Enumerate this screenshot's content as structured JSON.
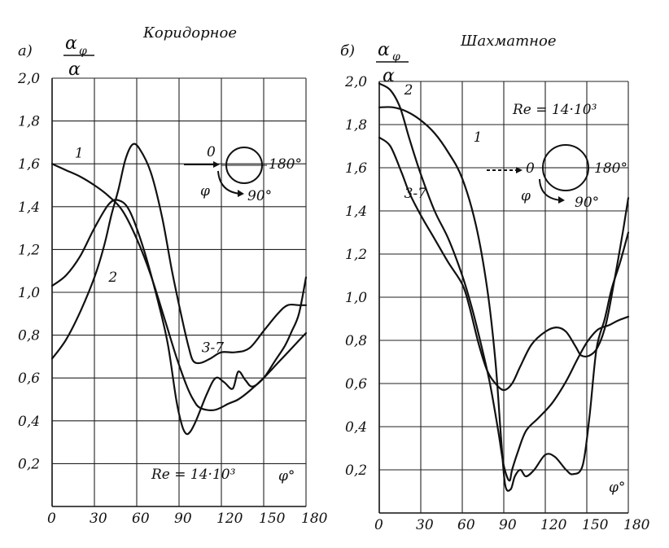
{
  "chart_data": [
    {
      "id": "a",
      "type": "line",
      "panel_label": "а)",
      "title": "Коридорное",
      "ylabel_num": "α",
      "ylabel_sub": "φ",
      "ylabel_den": "α",
      "xlabel": "φ°",
      "xlim": [
        0,
        180
      ],
      "ylim": [
        0.0,
        2.0
      ],
      "x_ticks": [
        0,
        30,
        60,
        90,
        120,
        150,
        180
      ],
      "x_tick_labels": [
        "0",
        "30",
        "60",
        "90",
        "120",
        "150",
        "180"
      ],
      "y_ticks": [
        0.2,
        0.4,
        0.6,
        0.8,
        1.0,
        1.2,
        1.4,
        1.6,
        1.8,
        2.0
      ],
      "y_tick_labels": [
        "0,2",
        "0,4",
        "0,6",
        "0,8",
        "1,0",
        "1,2",
        "1,4",
        "1,6",
        "1,8",
        "2,0"
      ],
      "grid": true,
      "annotation": "Re = 14·10³",
      "inset": {
        "zero_label": "0",
        "angle_label": "180°",
        "phi_label": "φ",
        "quarter_label": "90°"
      },
      "series": [
        {
          "name": "1",
          "label_at": [
            16,
            1.63
          ],
          "points": [
            [
              0,
              1.6
            ],
            [
              10,
              1.57
            ],
            [
              20,
              1.54
            ],
            [
              30,
              1.5
            ],
            [
              40,
              1.45
            ],
            [
              50,
              1.38
            ],
            [
              60,
              1.25
            ],
            [
              70,
              1.08
            ],
            [
              80,
              0.87
            ],
            [
              88,
              0.7
            ],
            [
              95,
              0.57
            ],
            [
              100,
              0.5
            ],
            [
              105,
              0.46
            ],
            [
              115,
              0.45
            ],
            [
              125,
              0.48
            ],
            [
              132,
              0.5
            ],
            [
              140,
              0.54
            ],
            [
              150,
              0.6
            ],
            [
              160,
              0.67
            ],
            [
              170,
              0.74
            ],
            [
              180,
              0.81
            ]
          ]
        },
        {
          "name": "2",
          "label_at": [
            40,
            1.05
          ],
          "points": [
            [
              0,
              1.03
            ],
            [
              10,
              1.08
            ],
            [
              20,
              1.17
            ],
            [
              30,
              1.3
            ],
            [
              40,
              1.41
            ],
            [
              47,
              1.43
            ],
            [
              55,
              1.38
            ],
            [
              65,
              1.2
            ],
            [
              75,
              0.96
            ],
            [
              82,
              0.76
            ],
            [
              88,
              0.5
            ],
            [
              92,
              0.38
            ],
            [
              95,
              0.34
            ],
            [
              98,
              0.35
            ],
            [
              102,
              0.4
            ],
            [
              110,
              0.53
            ],
            [
              116,
              0.6
            ],
            [
              122,
              0.58
            ],
            [
              128,
              0.55
            ],
            [
              132,
              0.63
            ],
            [
              137,
              0.59
            ],
            [
              142,
              0.56
            ],
            [
              150,
              0.6
            ],
            [
              158,
              0.68
            ],
            [
              165,
              0.75
            ],
            [
              170,
              0.82
            ],
            [
              175,
              0.9
            ],
            [
              180,
              1.07
            ]
          ]
        },
        {
          "name": "3-7",
          "label_at": [
            106,
            0.72
          ],
          "points": [
            [
              0,
              0.69
            ],
            [
              10,
              0.78
            ],
            [
              20,
              0.91
            ],
            [
              30,
              1.07
            ],
            [
              37,
              1.22
            ],
            [
              42,
              1.36
            ],
            [
              47,
              1.48
            ],
            [
              52,
              1.62
            ],
            [
              57,
              1.69
            ],
            [
              62,
              1.67
            ],
            [
              70,
              1.56
            ],
            [
              78,
              1.35
            ],
            [
              85,
              1.1
            ],
            [
              92,
              0.88
            ],
            [
              97,
              0.74
            ],
            [
              100,
              0.68
            ],
            [
              105,
              0.67
            ],
            [
              112,
              0.69
            ],
            [
              120,
              0.72
            ],
            [
              130,
              0.72
            ],
            [
              140,
              0.74
            ],
            [
              150,
              0.82
            ],
            [
              160,
              0.9
            ],
            [
              167,
              0.94
            ],
            [
              175,
              0.94
            ],
            [
              180,
              0.94
            ]
          ]
        }
      ]
    },
    {
      "id": "b",
      "type": "line",
      "panel_label": "б)",
      "title": "Шахматное",
      "ylabel_num": "α",
      "ylabel_sub": "φ",
      "ylabel_den": "α",
      "xlabel": "φ°",
      "xlim": [
        0,
        180
      ],
      "ylim": [
        0.0,
        2.0
      ],
      "x_ticks": [
        0,
        30,
        60,
        90,
        120,
        150,
        180
      ],
      "x_tick_labels": [
        "0",
        "30",
        "60",
        "90",
        "120",
        "150",
        "180"
      ],
      "y_ticks": [
        0.2,
        0.4,
        0.6,
        0.8,
        1.0,
        1.2,
        1.4,
        1.6,
        1.8,
        2.0
      ],
      "y_tick_labels": [
        "0,2",
        "0,4",
        "0,6",
        "0,8",
        "1,0",
        "1,2",
        "1,4",
        "1,6",
        "1,8",
        "2,0"
      ],
      "grid": true,
      "annotation": "Re = 14·10³",
      "inset": {
        "zero_label": "0",
        "angle_label": "180°",
        "phi_label": "φ",
        "quarter_label": "90°"
      },
      "series": [
        {
          "name": "1",
          "label_at": [
            68,
            1.72
          ],
          "points": [
            [
              0,
              1.88
            ],
            [
              10,
              1.88
            ],
            [
              20,
              1.86
            ],
            [
              30,
              1.82
            ],
            [
              40,
              1.76
            ],
            [
              50,
              1.67
            ],
            [
              60,
              1.55
            ],
            [
              70,
              1.33
            ],
            [
              78,
              1.04
            ],
            [
              84,
              0.7
            ],
            [
              88,
              0.35
            ],
            [
              91,
              0.13
            ],
            [
              95,
              0.11
            ],
            [
              98,
              0.17
            ],
            [
              102,
              0.2
            ],
            [
              106,
              0.17
            ],
            [
              112,
              0.2
            ],
            [
              120,
              0.27
            ],
            [
              127,
              0.26
            ],
            [
              135,
              0.2
            ],
            [
              140,
              0.18
            ],
            [
              147,
              0.22
            ],
            [
              152,
              0.45
            ],
            [
              157,
              0.76
            ],
            [
              163,
              0.9
            ],
            [
              168,
              1.04
            ],
            [
              174,
              1.16
            ],
            [
              180,
              1.3
            ]
          ]
        },
        {
          "name": "2",
          "label_at": [
            18,
            1.94
          ],
          "points": [
            [
              0,
              1.99
            ],
            [
              8,
              1.96
            ],
            [
              15,
              1.88
            ],
            [
              22,
              1.73
            ],
            [
              30,
              1.57
            ],
            [
              40,
              1.4
            ],
            [
              50,
              1.27
            ],
            [
              60,
              1.1
            ],
            [
              67,
              0.95
            ],
            [
              74,
              0.77
            ],
            [
              80,
              0.6
            ],
            [
              86,
              0.38
            ],
            [
              90,
              0.22
            ],
            [
              94,
              0.15
            ],
            [
              96,
              0.2
            ],
            [
              100,
              0.28
            ],
            [
              106,
              0.38
            ],
            [
              115,
              0.44
            ],
            [
              125,
              0.51
            ],
            [
              135,
              0.61
            ],
            [
              143,
              0.71
            ],
            [
              150,
              0.79
            ],
            [
              158,
              0.85
            ],
            [
              166,
              0.87
            ],
            [
              172,
              0.89
            ],
            [
              180,
              0.91
            ]
          ]
        },
        {
          "name": "3-7",
          "label_at": [
            18,
            1.46
          ],
          "points": [
            [
              0,
              1.74
            ],
            [
              8,
              1.7
            ],
            [
              16,
              1.58
            ],
            [
              22,
              1.48
            ],
            [
              30,
              1.38
            ],
            [
              40,
              1.27
            ],
            [
              50,
              1.16
            ],
            [
              60,
              1.06
            ],
            [
              65,
              0.96
            ],
            [
              72,
              0.78
            ],
            [
              78,
              0.66
            ],
            [
              84,
              0.6
            ],
            [
              90,
              0.57
            ],
            [
              96,
              0.6
            ],
            [
              102,
              0.68
            ],
            [
              110,
              0.78
            ],
            [
              120,
              0.84
            ],
            [
              128,
              0.86
            ],
            [
              135,
              0.84
            ],
            [
              142,
              0.77
            ],
            [
              146,
              0.73
            ],
            [
              152,
              0.73
            ],
            [
              158,
              0.77
            ],
            [
              164,
              0.88
            ],
            [
              170,
              1.08
            ],
            [
              176,
              1.3
            ],
            [
              180,
              1.46
            ]
          ]
        }
      ]
    }
  ]
}
